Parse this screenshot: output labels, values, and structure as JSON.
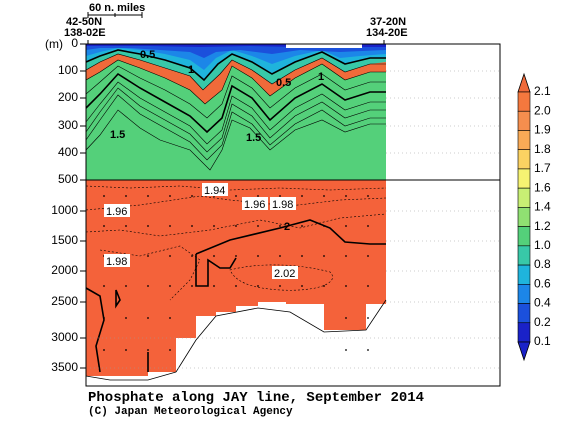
{
  "chart_data": {
    "type": "heatmap",
    "title": "Phosphate along JAY line, September 2014",
    "credit": "(C) Japan Meteorological Agency",
    "ylabel": "(m)",
    "y_ticks_upper": [
      "0",
      "100",
      "200",
      "300",
      "400",
      "500"
    ],
    "y_ticks_lower": [
      "1000",
      "1500",
      "2000",
      "2500",
      "3000",
      "3500"
    ],
    "scale_bar_label": "60 n. miles",
    "start_station": {
      "lat": "42-50N",
      "lon": "138-02E"
    },
    "end_station": {
      "lat": "37-20N",
      "lon": "134-20E"
    },
    "colorbar": {
      "levels": [
        "2.1",
        "2.0",
        "1.9",
        "1.8",
        "1.7",
        "1.6",
        "1.4",
        "1.2",
        "1.0",
        "0.8",
        "0.6",
        "0.4",
        "0.2",
        "0.1"
      ],
      "colors": [
        "#f06a3a",
        "#f4783e",
        "#f58e4e",
        "#f9aa56",
        "#fbd262",
        "#f6f372",
        "#c8ef74",
        "#90e072",
        "#54d07a",
        "#38c8a8",
        "#1fb4dc",
        "#1c86e8",
        "#1b50dc",
        "#1a22c8"
      ]
    },
    "contour_labels_upper": [
      "0.5",
      "1",
      "0.5",
      "1",
      "1.5",
      "1.5"
    ],
    "contour_labels_lower": [
      "1.94",
      "1.96",
      "1.96",
      "1.98",
      "2",
      "1.98",
      "2.02"
    ],
    "colors": {
      "deep": "#f4623a",
      "upper_fill_base": "#f27b3f"
    }
  }
}
